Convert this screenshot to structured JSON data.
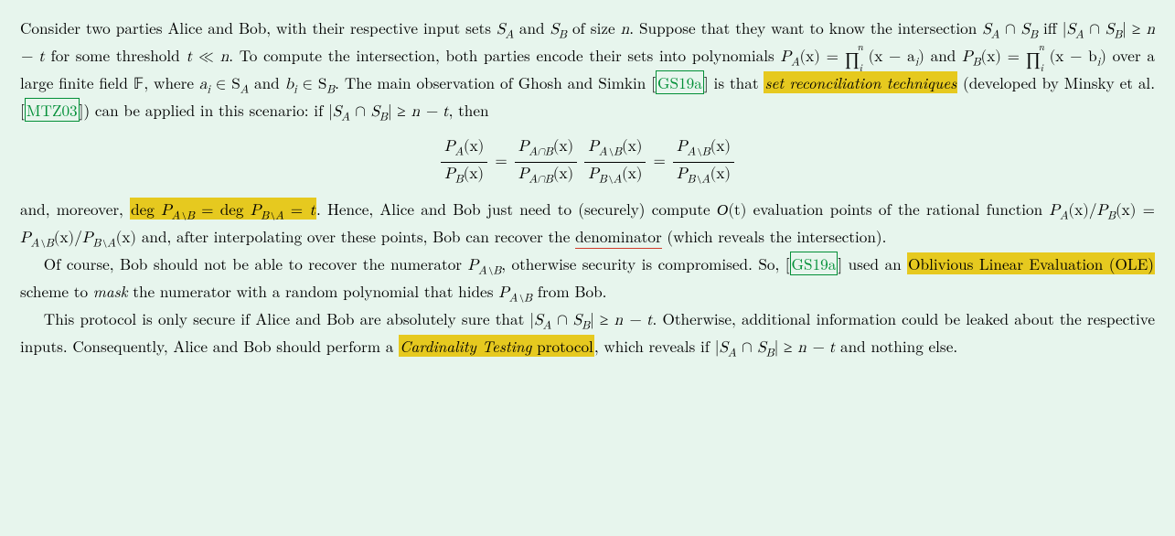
{
  "colors": {
    "background": "#e7f5ed",
    "highlight": "#e6c91f",
    "cite_border": "#028f37",
    "underline": "#d13a2a",
    "text": "#000000"
  },
  "p1": {
    "t1": "Consider two parties Alice and Bob, with their respective input sets ",
    "m_SA": "S",
    "m_SA_sub": "A",
    "t2": " and ",
    "m_SB": "S",
    "m_SB_sub": "B",
    "t3": " of size ",
    "m_n": "n",
    "t4": ". Suppose that they want to know the intersection ",
    "m_int1": "S",
    "m_int1_subA": "A",
    "m_cap": " ∩ ",
    "m_int1_subB": "B",
    "t5": " iff |",
    "t5b": "| ≥ ",
    "m_nmt": "n − t",
    "t6": " for some threshold ",
    "m_t": "t",
    "m_ll": " ≪ ",
    "t7": ". To compute the intersection, both parties encode their sets into polynomials ",
    "m_PA": "P",
    "m_PA_sub": "A",
    "m_fx": "(x) = ",
    "prod_sym": "∏",
    "prod_top": "n",
    "prod_bot": "i",
    "m_factA": "(x − a",
    "m_i": "i",
    "m_close": ")",
    "t8": " and ",
    "m_PB": "P",
    "m_PB_sub": "B",
    "m_factB": "(x − b",
    "t9": " over a large finite field ",
    "m_F": "𝔽",
    "t10": ", where ",
    "m_ai": "a",
    "m_inSA": " ∈ S",
    "t11": " and ",
    "m_bi": "b",
    "m_inSB": " ∈ S",
    "t12": ". The main observation of Ghosh and Simkin ",
    "cite1": "GS19a",
    "t13": " is that ",
    "hl1": "set reconciliation techniques",
    "t14": " (developed by Minsky et al. ",
    "cite2": "MTZ03",
    "t15": ") can be applied in this scenario: if |",
    "t16": "| ≥ ",
    "t17": ", then"
  },
  "eq": {
    "PA_num": "P",
    "PA_numsub": "A",
    "arg": "(x)",
    "PB_den": "P",
    "PB_densub": "B",
    "PAcapB": "A∩B",
    "PAmB": "A∖B",
    "PBmA": "B∖A",
    "eq": "="
  },
  "p2": {
    "t1": "and, moreover, ",
    "hl_deg1": "deg ",
    "hl_P1": "P",
    "hl_sub1": "A∖B",
    "hl_eq": " = ",
    "hl_deg2": "deg ",
    "hl_P2": "P",
    "hl_sub2": "B∖A",
    "hl_t": "t",
    "t2": ". Hence, Alice and Bob just need to (securely) compute ",
    "calO": "O",
    "m_Ot": "(t)",
    "t3": " evaluation points of the rational function ",
    "m_rat1": "P",
    "m_rat_subA": "A",
    "m_slash": "(x)/",
    "m_rat2": "P",
    "m_rat_subB": "B",
    "m_xeq": "(x) = ",
    "m_PAmB": "A∖B",
    "m_PBmA": "B∖A",
    "m_xend": "(x)",
    "t4": " and, after interpolating over these points, Bob can recover the ",
    "ul": "denominator",
    "t5": " (which reveals the intersection)."
  },
  "p3": {
    "t1": "Of course, Bob should not be able to recover the numerator ",
    "m_P": "P",
    "m_sub": "A∖B",
    "t2": ", otherwise security is compromised. So, ",
    "cite": "GS19a",
    "t3": " used an ",
    "hl": "Oblivious Linear Evaluation (OLE)",
    "t4": " scheme to ",
    "it_mask": "mask",
    "t5": " the numerator with a random polynomial that hides ",
    "t6": " from Bob."
  },
  "p4": {
    "t1": "This protocol is only secure if Alice and Bob are absolutely sure that |",
    "m_SA": "S",
    "m_subA": "A",
    "m_cap": " ∩ ",
    "m_SB": "S",
    "m_subB": "B",
    "t2": "| ≥ ",
    "m_nmt": "n − t",
    "t3": ". Otherwise, additional information could be leaked about the respective inputs. Consequently, Alice and Bob should perform a ",
    "hl_it": "Cardinality Testing",
    "hl_rest": " protocol",
    "t4": ", which reveals if |",
    "t5": "| ≥ ",
    "t6": " and nothing else."
  }
}
